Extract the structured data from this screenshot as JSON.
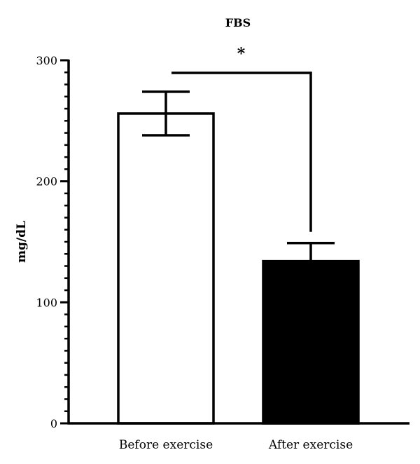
{
  "chart_data": {
    "type": "bar",
    "title": "FBS",
    "ylabel": "mg/dL",
    "xlabel": "",
    "ylim": [
      0,
      300
    ],
    "yticks": [
      0,
      100,
      200,
      300
    ],
    "minor_ticks_per_major": 10,
    "categories": [
      "Before exercise",
      "After exercise"
    ],
    "values": [
      256,
      134
    ],
    "errors": [
      18,
      15
    ],
    "bar_fills": [
      "#ffffff",
      "#000000"
    ],
    "significance": {
      "label": "*",
      "from": 0,
      "to": 1
    },
    "grid": false,
    "legend": "none"
  }
}
